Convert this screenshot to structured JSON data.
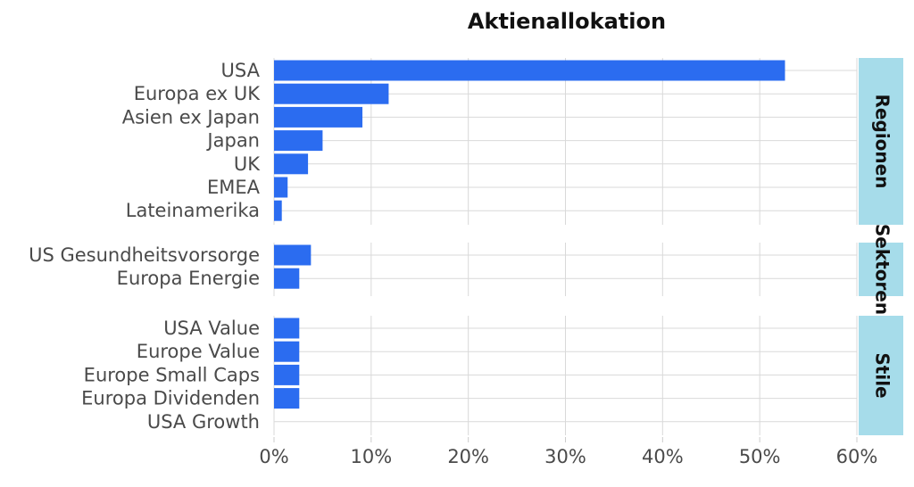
{
  "chart_data": {
    "type": "bar",
    "orientation": "horizontal",
    "title": "Aktienallokation",
    "xlabel": "",
    "ylabel": "",
    "xlim": [
      0,
      60
    ],
    "x_ticks": [
      "0%",
      "10%",
      "20%",
      "30%",
      "40%",
      "50%",
      "60%"
    ],
    "x_tick_values": [
      0,
      10,
      20,
      30,
      40,
      50,
      60
    ],
    "grid": true,
    "bar_color": "#2b6cf0",
    "facet_strip_color": "#a6dcea",
    "facets": [
      {
        "name": "Regionen",
        "categories": [
          "USA",
          "Europa ex UK",
          "Asien ex Japan",
          "Japan",
          "UK",
          "EMEA",
          "Lateinamerika"
        ],
        "values": [
          52.6,
          11.8,
          9.1,
          5.0,
          3.5,
          1.4,
          0.8
        ]
      },
      {
        "name": "Sektoren",
        "categories": [
          "US Gesundheitsvorsorge",
          "Europa Energie"
        ],
        "values": [
          3.8,
          2.6
        ]
      },
      {
        "name": "Stile",
        "categories": [
          "USA Value",
          "Europe Value",
          "Europe Small Caps",
          "Europa Dividenden",
          "USA Growth"
        ],
        "values": [
          2.6,
          2.6,
          2.6,
          2.6,
          0
        ]
      }
    ]
  }
}
